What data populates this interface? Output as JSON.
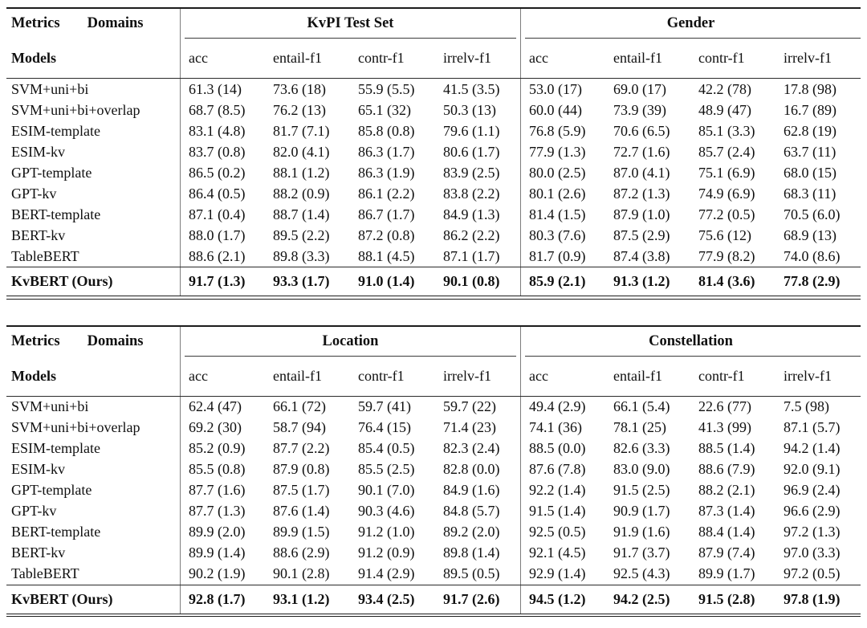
{
  "colors": {
    "text": "#101010",
    "rule": "#1c1c1c",
    "divider": "#7d7d7d"
  },
  "corner": {
    "metrics_label": "Metrics",
    "domains_label": "Domains",
    "models_label": "Models"
  },
  "metric_headers": [
    "acc",
    "entail-f1",
    "contr-f1",
    "irrelv-f1"
  ],
  "tables": [
    {
      "groups": [
        {
          "name": "KvPI Test Set"
        },
        {
          "name": "Gender"
        }
      ],
      "rows": [
        {
          "model": "SVM+uni+bi",
          "values": [
            "61.3 (14)",
            "73.6 (18)",
            "55.9 (5.5)",
            "41.5 (3.5)",
            "53.0 (17)",
            "69.0 (17)",
            "42.2 (78)",
            "17.8 (98)"
          ]
        },
        {
          "model": "SVM+uni+bi+overlap",
          "values": [
            "68.7 (8.5)",
            "76.2 (13)",
            "65.1 (32)",
            "50.3 (13)",
            "60.0 (44)",
            "73.9 (39)",
            "48.9 (47)",
            "16.7 (89)"
          ]
        },
        {
          "model": "ESIM-template",
          "values": [
            "83.1 (4.8)",
            "81.7 (7.1)",
            "85.8 (0.8)",
            "79.6 (1.1)",
            "76.8 (5.9)",
            "70.6 (6.5)",
            "85.1 (3.3)",
            "62.8 (19)"
          ]
        },
        {
          "model": "ESIM-kv",
          "values": [
            "83.7 (0.8)",
            "82.0 (4.1)",
            "86.3 (1.7)",
            "80.6 (1.7)",
            "77.9 (1.3)",
            "72.7 (1.6)",
            "85.7 (2.4)",
            "63.7 (11)"
          ]
        },
        {
          "model": "GPT-template",
          "values": [
            "86.5 (0.2)",
            "88.1 (1.2)",
            "86.3 (1.9)",
            "83.9 (2.5)",
            "80.0 (2.5)",
            "87.0 (4.1)",
            "75.1 (6.9)",
            "68.0 (15)"
          ]
        },
        {
          "model": "GPT-kv",
          "values": [
            "86.4 (0.5)",
            "88.2 (0.9)",
            "86.1 (2.2)",
            "83.8 (2.2)",
            "80.1 (2.6)",
            "87.2 (1.3)",
            "74.9 (6.9)",
            "68.3 (11)"
          ]
        },
        {
          "model": "BERT-template",
          "values": [
            "87.1 (0.4)",
            "88.7 (1.4)",
            "86.7 (1.7)",
            "84.9 (1.3)",
            "81.4 (1.5)",
            "87.9 (1.0)",
            "77.2 (0.5)",
            "70.5 (6.0)"
          ]
        },
        {
          "model": "BERT-kv",
          "values": [
            "88.0 (1.7)",
            "89.5 (2.2)",
            "87.2 (0.8)",
            "86.2 (2.2)",
            "80.3 (7.6)",
            "87.5 (2.9)",
            "75.6 (12)",
            "68.9 (13)"
          ]
        },
        {
          "model": "TableBERT",
          "values": [
            "88.6 (2.1)",
            "89.8 (3.3)",
            "88.1 (4.5)",
            "87.1 (1.7)",
            "81.7 (0.9)",
            "87.4 (3.8)",
            "77.9 (8.2)",
            "74.0 (8.6)"
          ]
        }
      ],
      "final_row": {
        "model": "KvBERT (Ours)",
        "values": [
          "91.7 (1.3)",
          "93.3 (1.7)",
          "91.0 (1.4)",
          "90.1 (0.8)",
          "85.9 (2.1)",
          "91.3 (1.2)",
          "81.4 (3.6)",
          "77.8 (2.9)"
        ]
      }
    },
    {
      "groups": [
        {
          "name": "Location"
        },
        {
          "name": "Constellation"
        }
      ],
      "rows": [
        {
          "model": "SVM+uni+bi",
          "values": [
            "62.4 (47)",
            "66.1 (72)",
            "59.7 (41)",
            "59.7 (22)",
            "49.4 (2.9)",
            "66.1 (5.4)",
            "22.6 (77)",
            "7.5 (98)"
          ]
        },
        {
          "model": "SVM+uni+bi+overlap",
          "values": [
            "69.2 (30)",
            "58.7 (94)",
            "76.4 (15)",
            "71.4 (23)",
            "74.1 (36)",
            "78.1 (25)",
            "41.3 (99)",
            "87.1 (5.7)"
          ]
        },
        {
          "model": "ESIM-template",
          "values": [
            "85.2 (0.9)",
            "87.7 (2.2)",
            "85.4 (0.5)",
            "82.3 (2.4)",
            "88.5 (0.0)",
            "82.6 (3.3)",
            "88.5 (1.4)",
            "94.2 (1.4)"
          ]
        },
        {
          "model": "ESIM-kv",
          "values": [
            "85.5 (0.8)",
            "87.9 (0.8)",
            "85.5 (2.5)",
            "82.8 (0.0)",
            "87.6 (7.8)",
            "83.0 (9.0)",
            "88.6 (7.9)",
            "92.0 (9.1)"
          ]
        },
        {
          "model": "GPT-template",
          "values": [
            "87.7 (1.6)",
            "87.5 (1.7)",
            "90.1 (7.0)",
            "84.9 (1.6)",
            "92.2 (1.4)",
            "91.5 (2.5)",
            "88.2 (2.1)",
            "96.9 (2.4)"
          ]
        },
        {
          "model": "GPT-kv",
          "values": [
            "87.7 (1.3)",
            "87.6 (1.4)",
            "90.3 (4.6)",
            "84.8 (5.7)",
            "91.5 (1.4)",
            "90.9 (1.7)",
            "87.3 (1.4)",
            "96.6 (2.9)"
          ]
        },
        {
          "model": "BERT-template",
          "values": [
            "89.9 (2.0)",
            "89.9 (1.5)",
            "91.2 (1.0)",
            "89.2 (2.0)",
            "92.5 (0.5)",
            "91.9 (1.6)",
            "88.4 (1.4)",
            "97.2 (1.3)"
          ]
        },
        {
          "model": "BERT-kv",
          "values": [
            "89.9 (1.4)",
            "88.6 (2.9)",
            "91.2 (0.9)",
            "89.8 (1.4)",
            "92.1 (4.5)",
            "91.7 (3.7)",
            "87.9 (7.4)",
            "97.0 (3.3)"
          ]
        },
        {
          "model": "TableBERT",
          "values": [
            "90.2 (1.9)",
            "90.1 (2.8)",
            "91.4 (2.9)",
            "89.5 (0.5)",
            "92.9 (1.4)",
            "92.5 (4.3)",
            "89.9 (1.7)",
            "97.2 (0.5)"
          ]
        }
      ],
      "final_row": {
        "model": "KvBERT (Ours)",
        "values": [
          "92.8 (1.7)",
          "93.1 (1.2)",
          "93.4 (2.5)",
          "91.7 (2.6)",
          "94.5 (1.2)",
          "94.2 (2.5)",
          "91.5 (2.8)",
          "97.8 (1.9)"
        ]
      }
    }
  ]
}
